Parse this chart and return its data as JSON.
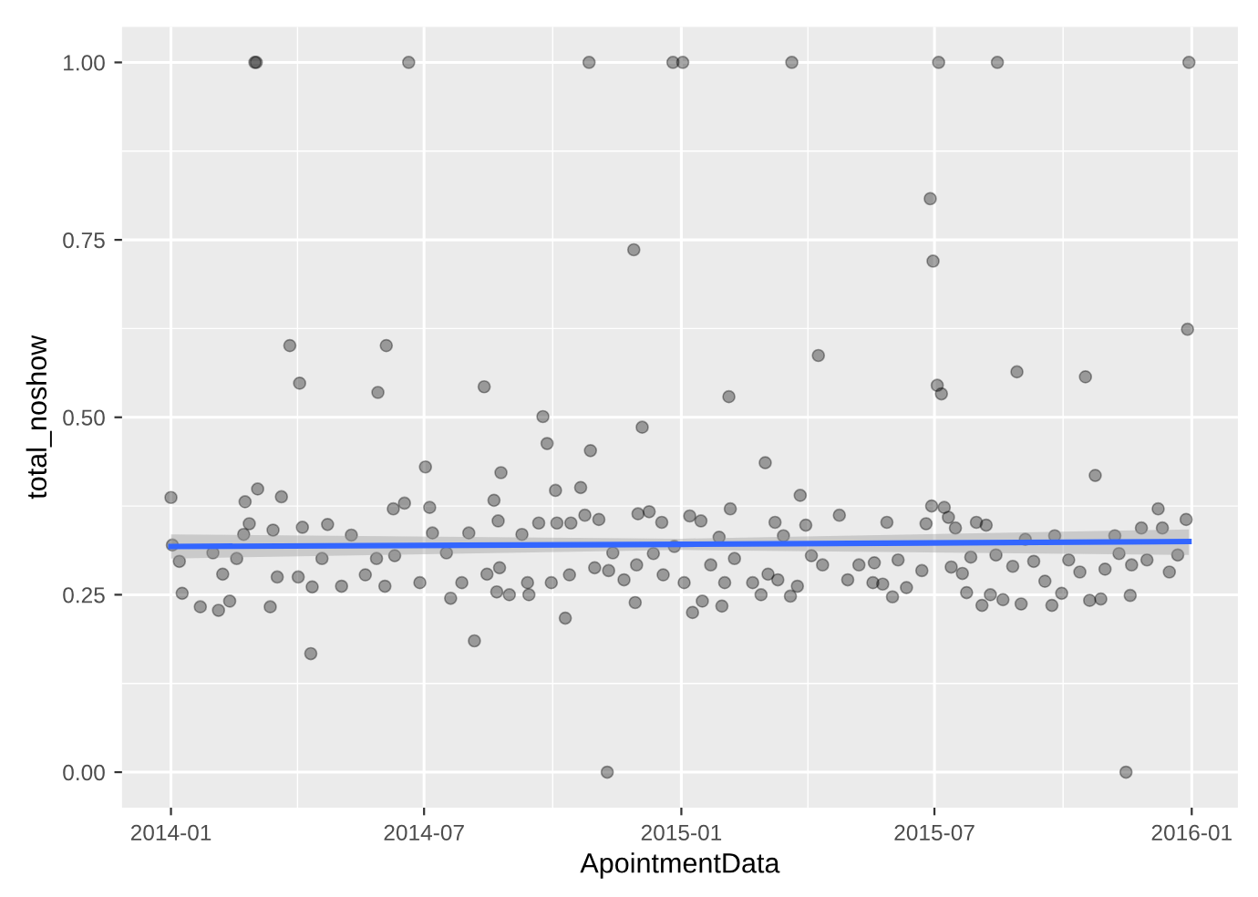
{
  "chart_data": {
    "type": "scatter",
    "xlabel": "ApointmentData",
    "ylabel": "total_noshow",
    "xlim": [
      "2013-11-27",
      "2016-02-03"
    ],
    "ylim": [
      -0.05,
      1.05
    ],
    "xticks": [
      "2014-01",
      "2014-07",
      "2015-01",
      "2015-07",
      "2016-01"
    ],
    "yticks": [
      {
        "value": 0,
        "label": "0.00"
      },
      {
        "value": 0.25,
        "label": "0.25"
      },
      {
        "value": 0.5,
        "label": "0.50"
      },
      {
        "value": 0.75,
        "label": "0.75"
      },
      {
        "value": 1,
        "label": "1.00"
      }
    ],
    "grid": true,
    "legend": false,
    "series": [
      {
        "marker": "circle",
        "color": "#000000",
        "x": [
          "2014-03-02",
          "2014-03-03",
          "2014-06-20",
          "2014-10-27",
          "2014-12-26",
          "2015-01-02",
          "2015-03-21",
          "2015-07-04",
          "2015-08-15",
          "2015-12-30",
          "2014-11-28",
          "2015-06-28",
          "2015-06-30",
          "2014-11-09",
          "2015-11-15",
          "2014-01-01",
          "2014-01-02",
          "2014-03-27",
          "2014-04-03",
          "2014-06-04",
          "2014-05-29",
          "2014-08-13",
          "2014-07-02",
          "2014-08-25",
          "2014-04-11",
          "2014-08-06",
          "2014-03-04",
          "2014-03-21",
          "2014-02-23",
          "2014-02-26",
          "2014-06-09",
          "2014-06-17",
          "2014-07-05",
          "2014-08-20",
          "2014-01-07",
          "2014-01-09",
          "2014-01-22",
          "2014-02-04",
          "2014-02-12",
          "2014-01-31",
          "2014-02-07",
          "2014-03-13",
          "2014-03-15",
          "2014-03-18",
          "2014-04-05",
          "2014-04-02",
          "2014-04-12",
          "2014-04-23",
          "2014-05-03",
          "2014-05-10",
          "2014-05-20",
          "2014-06-03",
          "2014-06-10",
          "2014-06-28",
          "2014-07-07",
          "2014-07-20",
          "2014-07-28",
          "2014-08-02",
          "2014-08-15",
          "2014-08-23",
          "2014-08-22",
          "2014-02-22",
          "2014-02-17",
          "2014-04-19",
          "2014-05-28",
          "2014-07-17",
          "2014-09-24",
          "2014-09-27",
          "2014-10-28",
          "2014-10-03",
          "2014-10-21",
          "2014-12-04",
          "2015-02-04",
          "2015-04-09",
          "2015-03-02",
          "2015-03-27",
          "2015-02-05",
          "2015-04-24",
          "2014-10-10",
          "2014-11-29",
          "2015-01-09",
          "2015-01-16",
          "2015-01-30",
          "2015-02-27",
          "2015-03-20",
          "2014-09-14",
          "2014-08-31",
          "2014-09-09",
          "2014-09-21",
          "2014-10-04",
          "2014-10-14",
          "2014-10-24",
          "2014-11-03",
          "2014-12-01",
          "2014-12-09",
          "2014-12-18",
          "2015-01-07",
          "2015-01-15",
          "2015-01-28",
          "2015-03-09",
          "2015-03-15",
          "2015-03-31",
          "2014-08-24",
          "2014-09-13",
          "2014-09-30",
          "2014-10-13",
          "2014-10-31",
          "2014-11-10",
          "2014-11-21",
          "2014-11-30",
          "2014-12-12",
          "2014-12-19",
          "2015-01-03",
          "2015-01-22",
          "2015-02-01",
          "2015-02-08",
          "2015-02-21",
          "2015-03-04",
          "2015-03-11",
          "2015-03-25",
          "2015-04-04",
          "2015-04-12",
          "2015-04-30",
          "2015-05-08",
          "2015-05-18",
          "2014-11-13",
          "2014-12-27",
          "2015-07-03",
          "2015-07-06",
          "2015-08-29",
          "2015-10-17",
          "2015-12-29",
          "2015-10-24",
          "2015-06-29",
          "2015-07-08",
          "2015-05-28",
          "2015-06-25",
          "2015-07-11",
          "2015-07-16",
          "2015-07-31",
          "2015-08-07",
          "2015-12-08",
          "2015-11-26",
          "2015-12-28",
          "2015-12-11",
          "2015-11-07",
          "2015-09-25",
          "2015-09-04",
          "2015-08-04",
          "2015-07-24",
          "2015-08-19",
          "2015-09-01",
          "2015-09-23",
          "2015-10-20",
          "2015-10-28",
          "2015-11-18",
          "2015-06-01",
          "2015-06-11",
          "2015-05-25",
          "2015-08-10",
          "2015-09-30",
          "2015-06-05",
          "2015-06-22",
          "2015-07-13",
          "2015-07-21",
          "2015-07-27",
          "2015-08-14",
          "2015-08-26",
          "2015-09-10",
          "2015-09-18",
          "2015-10-05",
          "2015-10-13",
          "2015-10-31",
          "2015-11-10",
          "2015-11-19",
          "2015-11-30",
          "2015-12-16",
          "2015-12-22",
          "2015-05-19"
        ],
        "values": [
          1.0,
          1.0,
          1.0,
          1.0,
          1.0,
          1.0,
          1.0,
          1.0,
          1.0,
          1.0,
          0.736,
          0.808,
          0.72,
          0.0,
          0.0,
          0.387,
          0.32,
          0.601,
          0.548,
          0.601,
          0.535,
          0.543,
          0.43,
          0.422,
          0.167,
          0.185,
          0.399,
          0.388,
          0.381,
          0.35,
          0.371,
          0.379,
          0.373,
          0.383,
          0.297,
          0.252,
          0.233,
          0.228,
          0.241,
          0.309,
          0.279,
          0.233,
          0.341,
          0.275,
          0.345,
          0.275,
          0.261,
          0.349,
          0.262,
          0.334,
          0.278,
          0.262,
          0.305,
          0.267,
          0.337,
          0.245,
          0.267,
          0.337,
          0.279,
          0.354,
          0.254,
          0.335,
          0.301,
          0.301,
          0.301,
          0.309,
          0.501,
          0.463,
          0.453,
          0.397,
          0.401,
          0.486,
          0.529,
          0.587,
          0.436,
          0.39,
          0.371,
          0.362,
          0.217,
          0.239,
          0.225,
          0.241,
          0.234,
          0.25,
          0.248,
          0.25,
          0.25,
          0.335,
          0.351,
          0.351,
          0.351,
          0.362,
          0.356,
          0.364,
          0.367,
          0.352,
          0.361,
          0.354,
          0.331,
          0.352,
          0.333,
          0.348,
          0.288,
          0.267,
          0.267,
          0.278,
          0.288,
          0.284,
          0.271,
          0.292,
          0.308,
          0.278,
          0.267,
          0.292,
          0.267,
          0.301,
          0.267,
          0.279,
          0.271,
          0.262,
          0.305,
          0.292,
          0.271,
          0.292,
          0.267,
          0.309,
          0.318,
          0.545,
          0.533,
          0.564,
          0.557,
          0.624,
          0.418,
          0.375,
          0.373,
          0.352,
          0.35,
          0.359,
          0.344,
          0.352,
          0.348,
          0.371,
          0.344,
          0.356,
          0.344,
          0.333,
          0.333,
          0.328,
          0.235,
          0.253,
          0.243,
          0.237,
          0.235,
          0.242,
          0.244,
          0.249,
          0.247,
          0.26,
          0.265,
          0.25,
          0.252,
          0.299,
          0.284,
          0.289,
          0.28,
          0.303,
          0.306,
          0.29,
          0.297,
          0.269,
          0.299,
          0.282,
          0.286,
          0.308,
          0.292,
          0.299,
          0.282,
          0.306,
          0.295
        ]
      },
      {
        "type": "line",
        "color": "#3366ff",
        "x": [
          "2014-01-01",
          "2015-01-01",
          "2015-12-30"
        ],
        "values": [
          0.318,
          0.321,
          0.325
        ],
        "lower": [
          0.301,
          0.313,
          0.306
        ],
        "upper": [
          0.335,
          0.329,
          0.342
        ]
      }
    ]
  }
}
